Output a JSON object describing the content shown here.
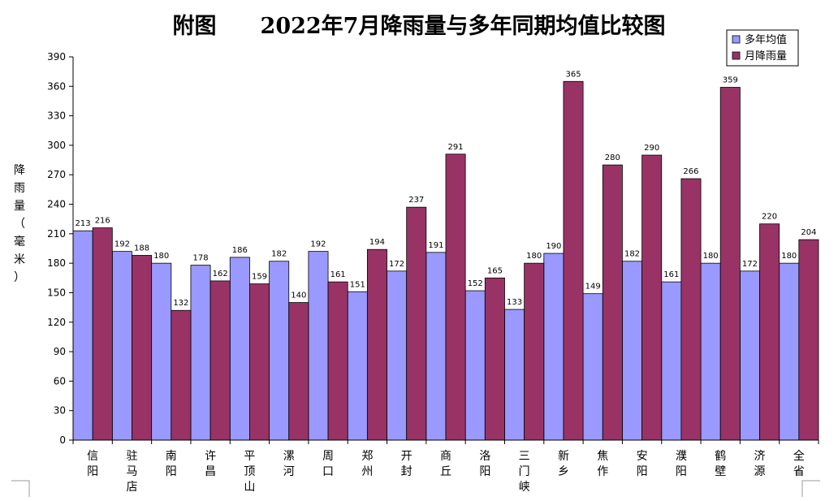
{
  "chart_data": {
    "type": "bar",
    "title": "附图　　2022年7月降雨量与多年同期均值比较图",
    "ylabel": "降雨量（毫米）",
    "xlabel": "",
    "ylim": [
      0,
      390
    ],
    "yticks": [
      0,
      30,
      60,
      90,
      120,
      150,
      180,
      210,
      240,
      270,
      300,
      330,
      360,
      390
    ],
    "legend_position": "top-right",
    "grid": false,
    "categories": [
      "信阳",
      "驻马店",
      "南阳",
      "许昌",
      "平顶山",
      "漯河",
      "周口",
      "郑州",
      "开封",
      "商丘",
      "洛阳",
      "三门峡",
      "新乡",
      "焦作",
      "安阳",
      "濮阳",
      "鹤壁",
      "济源",
      "全省"
    ],
    "series": [
      {
        "name": "多年均值",
        "color": "#9999ff",
        "values": [
          213,
          192,
          180,
          178,
          186,
          182,
          192,
          151,
          172,
          191,
          152,
          133,
          190,
          149,
          182,
          161,
          180,
          172,
          180
        ]
      },
      {
        "name": "月降雨量",
        "color": "#993366",
        "values": [
          216,
          188,
          132,
          162,
          159,
          140,
          161,
          194,
          237,
          291,
          165,
          180,
          365,
          280,
          290,
          266,
          359,
          220,
          204
        ]
      }
    ]
  }
}
